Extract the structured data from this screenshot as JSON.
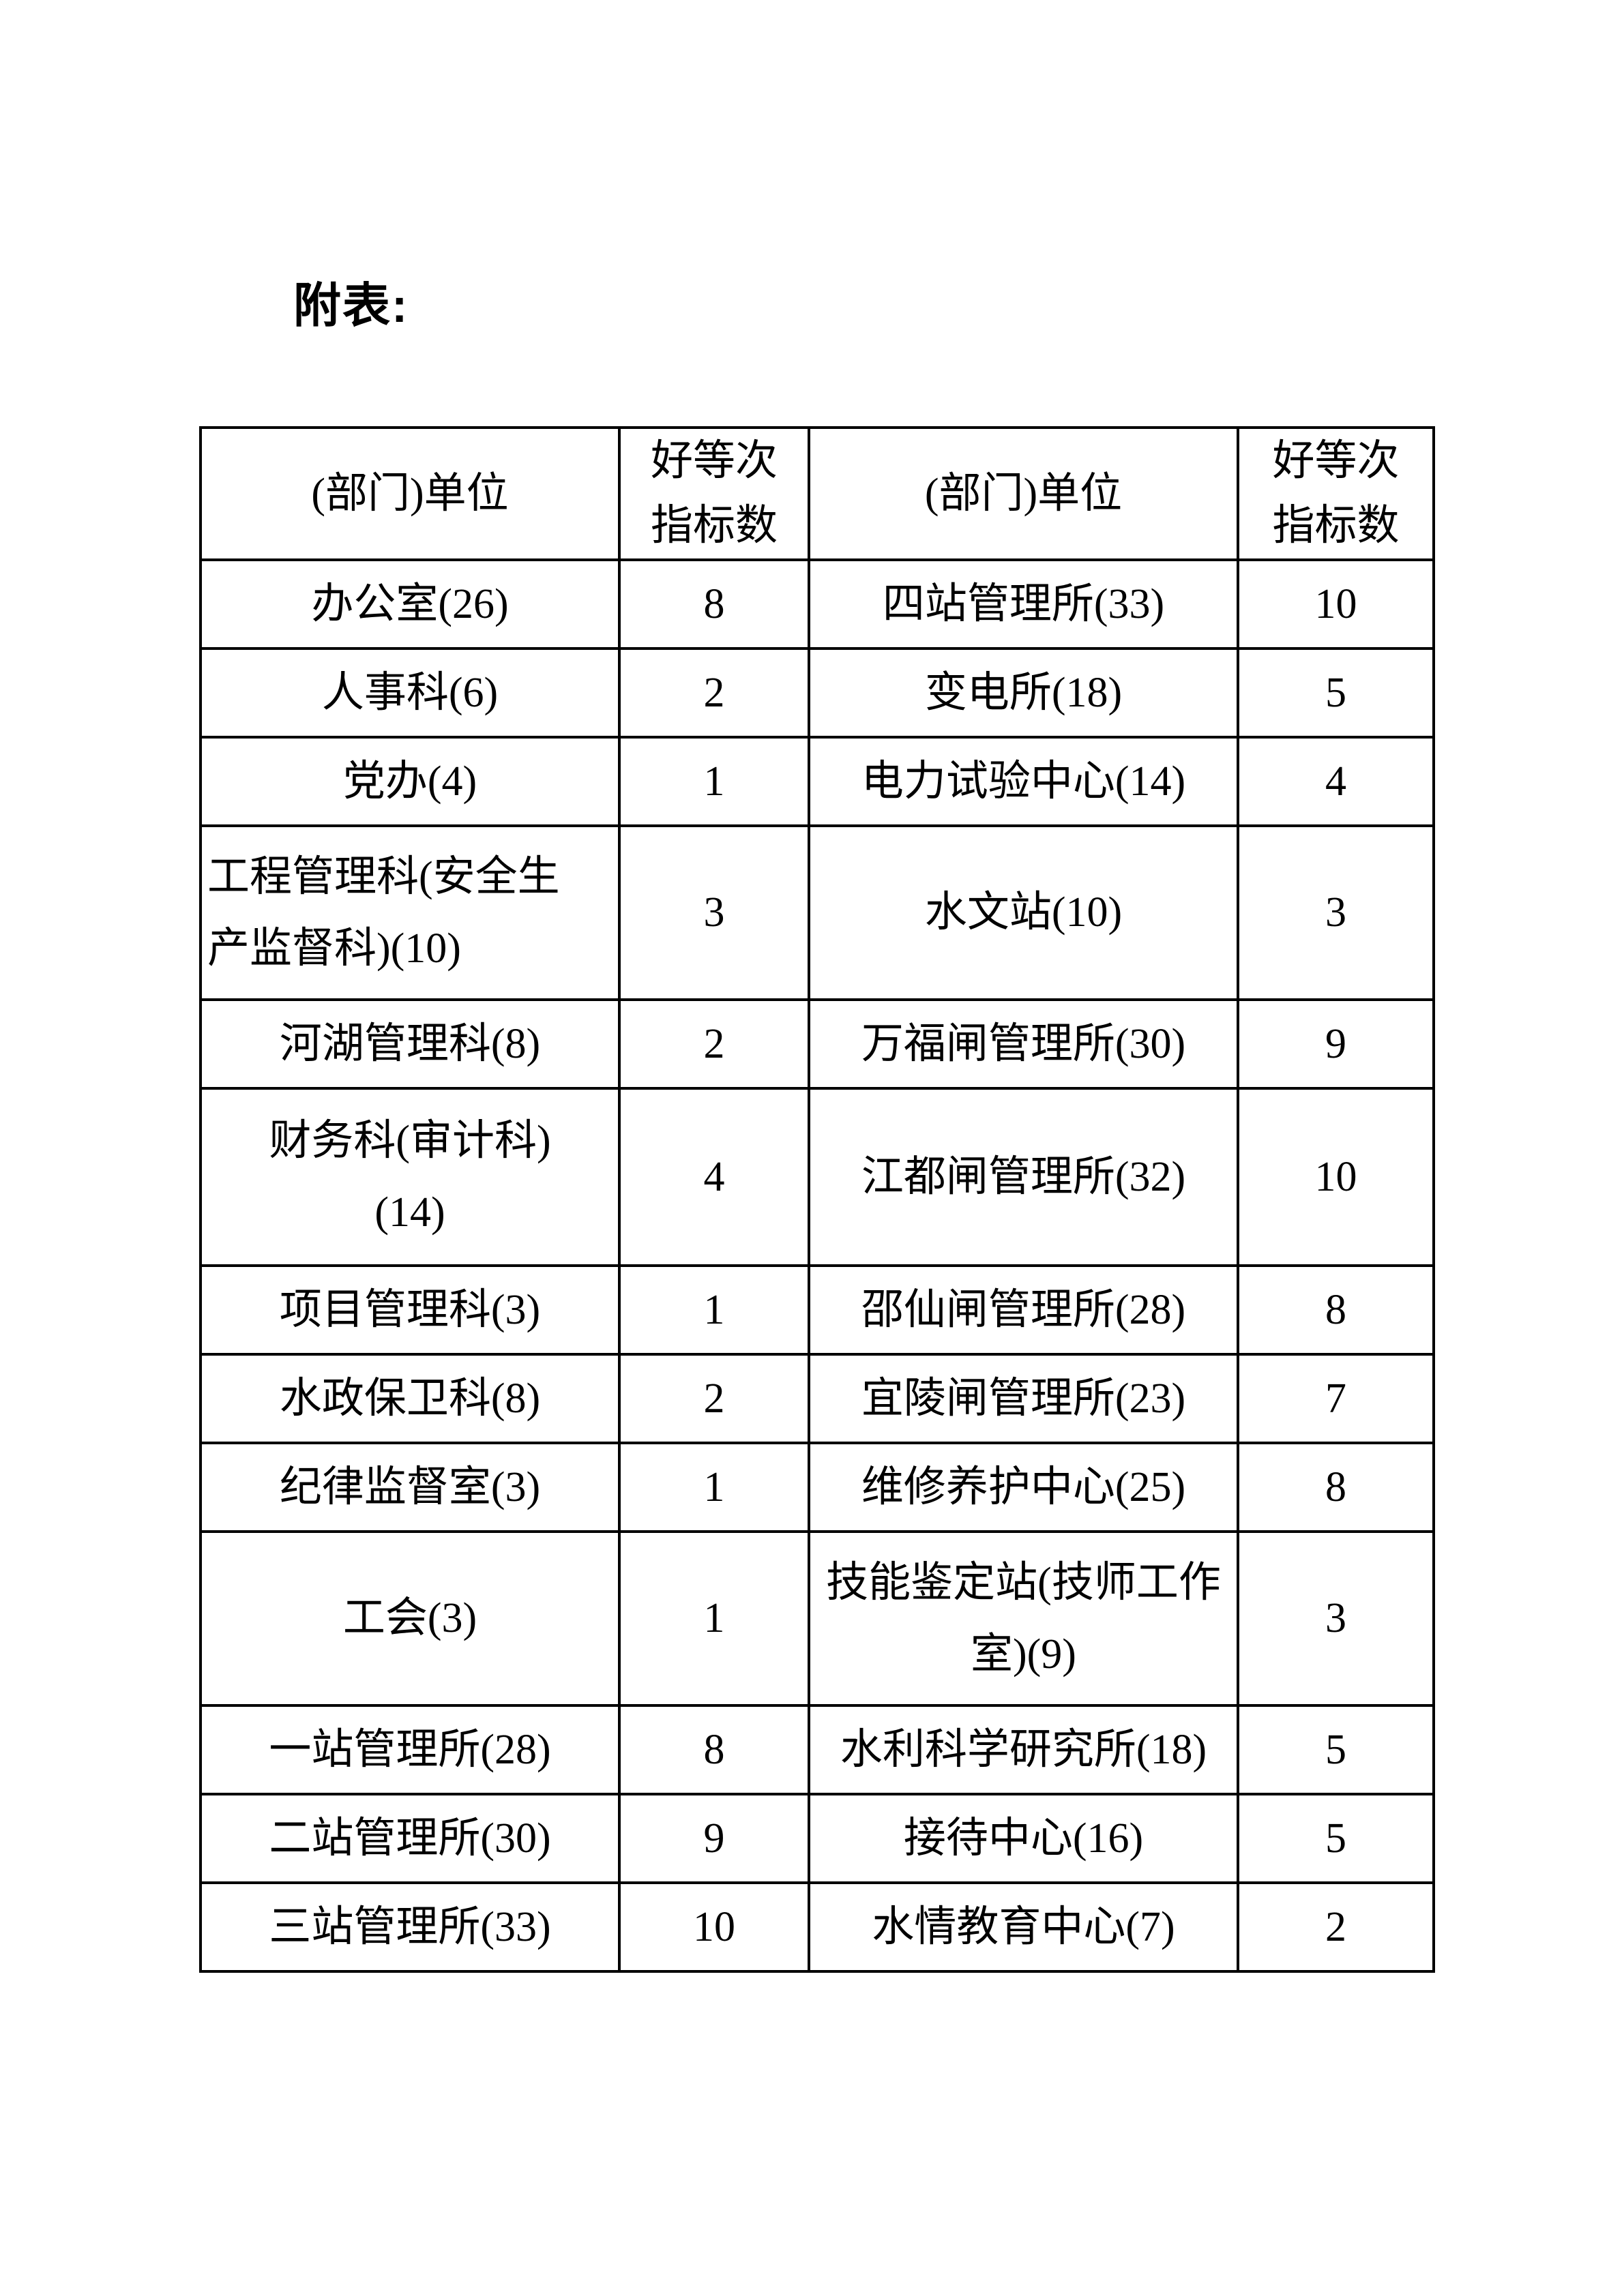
{
  "page": {
    "heading": "附表:"
  },
  "colors": {
    "text": "#000000",
    "border": "#000000",
    "background": "#ffffff"
  },
  "table": {
    "header": {
      "unit1": "(部门)单位",
      "indicator1": "好等次\n指标数",
      "unit2": "(部门)单位",
      "indicator2": "好等次\n指标数"
    },
    "rows": [
      {
        "c0": "办公室(26)",
        "c1": "8",
        "c2": "四站管理所(33)",
        "c3": "10"
      },
      {
        "c0": "人事科(6)",
        "c1": "2",
        "c2": "变电所(18)",
        "c3": "5"
      },
      {
        "c0": "党办(4)",
        "c1": "1",
        "c2": "电力试验中心(14)",
        "c3": "4"
      },
      {
        "c0": "工程管理科(安全生\n产监督科)(10)",
        "c1": "3",
        "c2": "水文站(10)",
        "c3": "3"
      },
      {
        "c0": "河湖管理科(8)",
        "c1": "2",
        "c2": "万福闸管理所(30)",
        "c3": "9"
      },
      {
        "c0": "财务科(审计科)\n(14)",
        "c1": "4",
        "c2": "江都闸管理所(32)",
        "c3": "10"
      },
      {
        "c0": "项目管理科(3)",
        "c1": "1",
        "c2": "邵仙闸管理所(28)",
        "c3": "8"
      },
      {
        "c0": "水政保卫科(8)",
        "c1": "2",
        "c2": "宜陵闸管理所(23)",
        "c3": "7"
      },
      {
        "c0": "纪律监督室(3)",
        "c1": "1",
        "c2": "维修养护中心(25)",
        "c3": "8"
      },
      {
        "c0": "工会(3)",
        "c1": "1",
        "c2": "技能鉴定站(技师工作\n室)(9)",
        "c3": "3"
      },
      {
        "c0": "一站管理所(28)",
        "c1": "8",
        "c2": "水利科学研究所(18)",
        "c3": "5"
      },
      {
        "c0": "二站管理所(30)",
        "c1": "9",
        "c2": "接待中心(16)",
        "c3": "5"
      },
      {
        "c0": "三站管理所(33)",
        "c1": "10",
        "c2": "水情教育中心(7)",
        "c3": "2"
      }
    ]
  }
}
